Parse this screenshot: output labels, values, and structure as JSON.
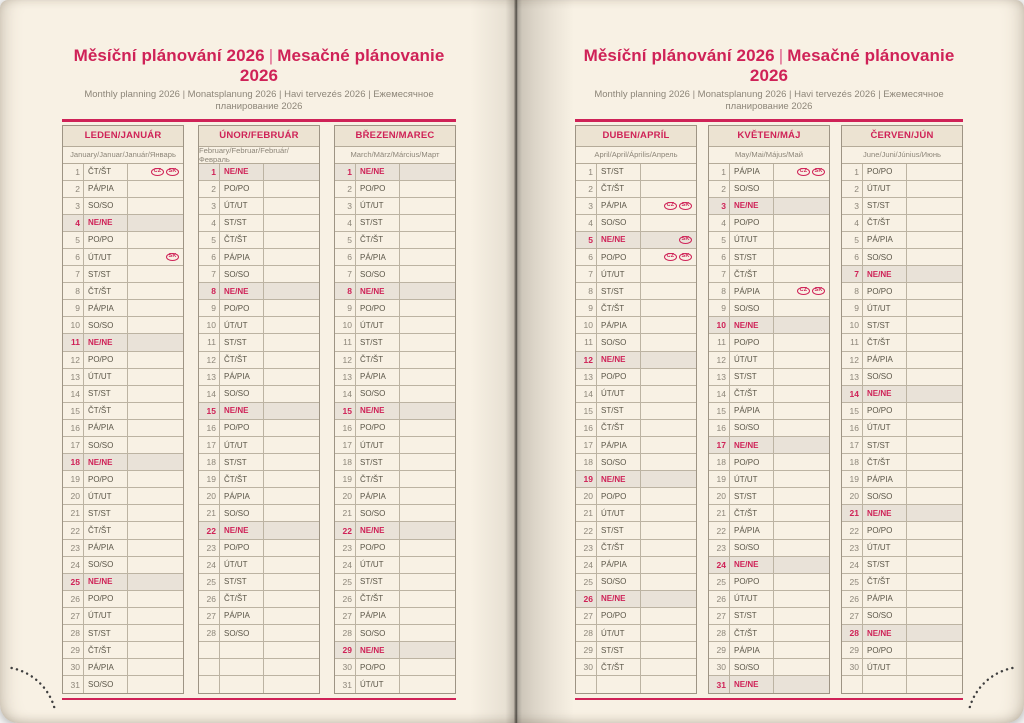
{
  "header": {
    "title_cz": "Měsíční plánování 2026",
    "title_divider": "|",
    "title_sk": "Mesačné plánovanie 2026",
    "subtitle": "Monthly planning 2026 | Monatsplanung 2026 | Havi tervezés 2026 | Ежемесячное планирование 2026"
  },
  "colors": {
    "accent_pink": "#cf2257",
    "page_cream": "#f8f1e4",
    "header_cell_bg": "#ece3d2",
    "sunday_row_bg": "#e9e2d8",
    "grid_border": "#bcb3a2",
    "day_text": "#5a5547",
    "number_text": "#8d8679"
  },
  "badge_labels": {
    "cz": "CZ",
    "sk": "SK"
  },
  "rows_per_table": 31,
  "months": [
    {
      "title": "LEDEN/JANUÁR",
      "subtitle": "January/Januar/Január/Январь",
      "days": [
        "ČT/ŠT",
        "PÁ/PIA",
        "SO/SO",
        "NE/NE",
        "PO/PO",
        "ÚT/UT",
        "ST/ST",
        "ČT/ŠT",
        "PÁ/PIA",
        "SO/SO",
        "NE/NE",
        "PO/PO",
        "ÚT/UT",
        "ST/ST",
        "ČT/ŠT",
        "PÁ/PIA",
        "SO/SO",
        "NE/NE",
        "PO/PO",
        "ÚT/UT",
        "ST/ST",
        "ČT/ŠT",
        "PÁ/PIA",
        "SO/SO",
        "NE/NE",
        "PO/PO",
        "ÚT/UT",
        "ST/ST",
        "ČT/ŠT",
        "PÁ/PIA",
        "SO/SO"
      ],
      "badges": {
        "1": [
          "CZ",
          "SK"
        ],
        "6": [
          "SK"
        ]
      }
    },
    {
      "title": "ÚNOR/FEBRUÁR",
      "subtitle": "February/Februar/Február/Февраль",
      "days": [
        "NE/NE",
        "PO/PO",
        "ÚT/UT",
        "ST/ST",
        "ČT/ŠT",
        "PÁ/PIA",
        "SO/SO",
        "NE/NE",
        "PO/PO",
        "ÚT/UT",
        "ST/ST",
        "ČT/ŠT",
        "PÁ/PIA",
        "SO/SO",
        "NE/NE",
        "PO/PO",
        "ÚT/UT",
        "ST/ST",
        "ČT/ŠT",
        "PÁ/PIA",
        "SO/SO",
        "NE/NE",
        "PO/PO",
        "ÚT/UT",
        "ST/ST",
        "ČT/ŠT",
        "PÁ/PIA",
        "SO/SO"
      ],
      "badges": {}
    },
    {
      "title": "BŘEZEN/MAREC",
      "subtitle": "March/März/Március/Март",
      "days": [
        "NE/NE",
        "PO/PO",
        "ÚT/UT",
        "ST/ST",
        "ČT/ŠT",
        "PÁ/PIA",
        "SO/SO",
        "NE/NE",
        "PO/PO",
        "ÚT/UT",
        "ST/ST",
        "ČT/ŠT",
        "PÁ/PIA",
        "SO/SO",
        "NE/NE",
        "PO/PO",
        "ÚT/UT",
        "ST/ST",
        "ČT/ŠT",
        "PÁ/PIA",
        "SO/SO",
        "NE/NE",
        "PO/PO",
        "ÚT/UT",
        "ST/ST",
        "ČT/ŠT",
        "PÁ/PIA",
        "SO/SO",
        "NE/NE",
        "PO/PO",
        "ÚT/UT"
      ],
      "badges": {}
    },
    {
      "title": "DUBEN/APRÍL",
      "subtitle": "April/April/Április/Апрель",
      "days": [
        "ST/ST",
        "ČT/ŠT",
        "PÁ/PIA",
        "SO/SO",
        "NE/NE",
        "PO/PO",
        "ÚT/UT",
        "ST/ST",
        "ČT/ŠT",
        "PÁ/PIA",
        "SO/SO",
        "NE/NE",
        "PO/PO",
        "ÚT/UT",
        "ST/ST",
        "ČT/ŠT",
        "PÁ/PIA",
        "SO/SO",
        "NE/NE",
        "PO/PO",
        "ÚT/UT",
        "ST/ST",
        "ČT/ŠT",
        "PÁ/PIA",
        "SO/SO",
        "NE/NE",
        "PO/PO",
        "ÚT/UT",
        "ST/ST",
        "ČT/ŠT"
      ],
      "badges": {
        "3": [
          "CZ",
          "SK"
        ],
        "5": [
          "SK"
        ],
        "6": [
          "CZ",
          "SK"
        ]
      }
    },
    {
      "title": "KVĚTEN/MÁJ",
      "subtitle": "May/Mai/Május/Май",
      "days": [
        "PÁ/PIA",
        "SO/SO",
        "NE/NE",
        "PO/PO",
        "ÚT/UT",
        "ST/ST",
        "ČT/ŠT",
        "PÁ/PIA",
        "SO/SO",
        "NE/NE",
        "PO/PO",
        "ÚT/UT",
        "ST/ST",
        "ČT/ŠT",
        "PÁ/PIA",
        "SO/SO",
        "NE/NE",
        "PO/PO",
        "ÚT/UT",
        "ST/ST",
        "ČT/ŠT",
        "PÁ/PIA",
        "SO/SO",
        "NE/NE",
        "PO/PO",
        "ÚT/UT",
        "ST/ST",
        "ČT/ŠT",
        "PÁ/PIA",
        "SO/SO",
        "NE/NE"
      ],
      "badges": {
        "1": [
          "CZ",
          "SK"
        ],
        "8": [
          "CZ",
          "SK"
        ]
      }
    },
    {
      "title": "ČERVEN/JÚN",
      "subtitle": "June/Juni/Június/Июнь",
      "days": [
        "PO/PO",
        "ÚT/UT",
        "ST/ST",
        "ČT/ŠT",
        "PÁ/PIA",
        "SO/SO",
        "NE/NE",
        "PO/PO",
        "ÚT/UT",
        "ST/ST",
        "ČT/ŠT",
        "PÁ/PIA",
        "SO/SO",
        "NE/NE",
        "PO/PO",
        "ÚT/UT",
        "ST/ST",
        "ČT/ŠT",
        "PÁ/PIA",
        "SO/SO",
        "NE/NE",
        "PO/PO",
        "ÚT/UT",
        "ST/ST",
        "ČT/ŠT",
        "PÁ/PIA",
        "SO/SO",
        "NE/NE",
        "PO/PO",
        "ÚT/UT"
      ],
      "badges": {}
    }
  ]
}
